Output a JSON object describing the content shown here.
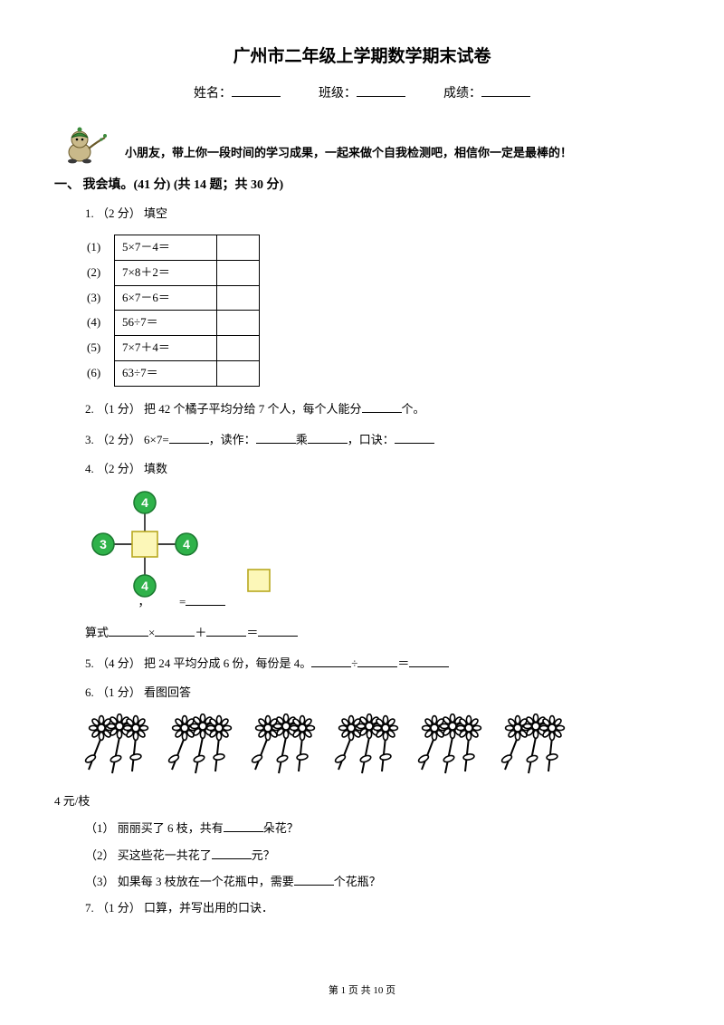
{
  "title": "广州市二年级上学期数学期末试卷",
  "header": {
    "name_label": "姓名：",
    "class_label": "班级：",
    "score_label": "成绩："
  },
  "intro": "小朋友，带上你一段时间的学习成果，一起来做个自我检测吧，相信你一定是最棒的！",
  "section": {
    "heading": "一、 我会填。(41 分)   (共 14 题；共 30 分)"
  },
  "q1": {
    "stem": "1.  （2 分） 填空",
    "rows": [
      {
        "label": "(1)",
        "expr": "5×7－4＝"
      },
      {
        "label": "(2)",
        "expr": "7×8＋2＝"
      },
      {
        "label": "(3)",
        "expr": "6×7－6＝"
      },
      {
        "label": "(4)",
        "expr": "56÷7＝"
      },
      {
        "label": "(5)",
        "expr": "7×7＋4＝"
      },
      {
        "label": "(6)",
        "expr": "63÷7＝"
      }
    ]
  },
  "q2": {
    "pre": "2.  （1 分） 把 42 个橘子平均分给 7 个人，每个人能分",
    "post": "个。"
  },
  "q3": {
    "pre": "3.  （2 分） 6×7=",
    "mid1": "，读作：",
    "mid2": "乘",
    "mid3": "，口诀："
  },
  "q4": {
    "stem": "4.  （2 分） 填数",
    "node_value": "4",
    "left_value": "3",
    "eq_mid1": "，",
    "eq_mid2": "=",
    "line2_pre": "算式",
    "line2_times": "×",
    "line2_plus": "＋",
    "line2_eq": "＝"
  },
  "q5": {
    "pre": "5.  （4 分） 把 24 平均分成 6 份，每份是 4。",
    "div": "÷",
    "eq": "＝"
  },
  "q6": {
    "stem": "6.  （1 分） 看图回答",
    "price": "4 元/枝",
    "s1_pre": "（1） 丽丽买了 6 枝，共有",
    "s1_post": "朵花？",
    "s2_pre": "（2） 买这些花一共花了",
    "s2_post": "元？",
    "s3_pre": "（3） 如果每 3 枝放在一个花瓶中，需要",
    "s3_post": "个花瓶？"
  },
  "q7": {
    "stem": "7.  （1 分） 口算，并写出用的口诀．"
  },
  "footer": {
    "text": "第 1 页 共 10 页"
  },
  "colors": {
    "node_green": "#2fb24a",
    "node_green_edge": "#1c7a31",
    "square_fill": "#fcf7b8",
    "square_edge": "#b8a81f",
    "beige": "#c9b98a",
    "hat_green": "#3a8a3a",
    "dark": "#3a3a3a"
  },
  "flower_count": 6
}
